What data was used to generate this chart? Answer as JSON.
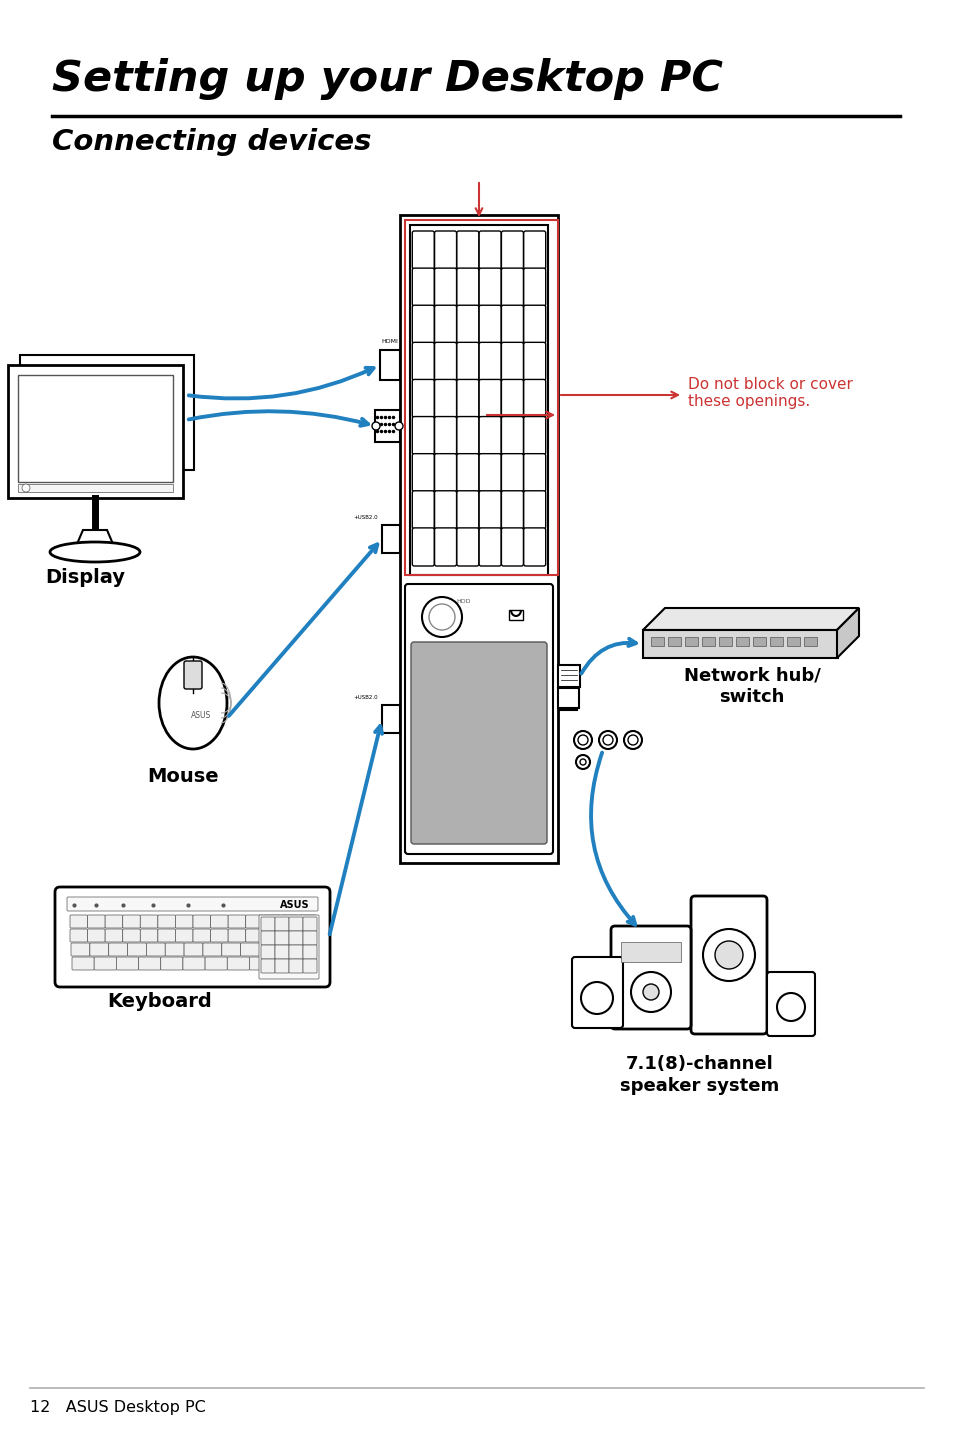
{
  "title": "Setting up your Desktop PC",
  "subtitle": "Connecting devices",
  "footer_text": "12   ASUS Desktop PC",
  "bg": "#ffffff",
  "blue": "#2080c0",
  "red": "#cc3333",
  "black": "#000000",
  "lgray": "#c0c0c0",
  "dgray": "#555555",
  "warning_text": "Do not block or cover\nthese openings.",
  "label_display": "Display",
  "label_mouse": "Mouse",
  "label_keyboard": "Keyboard",
  "label_network": "Network hub/\nswitch",
  "label_speaker": "7.1(8)-channel\nspeaker system"
}
